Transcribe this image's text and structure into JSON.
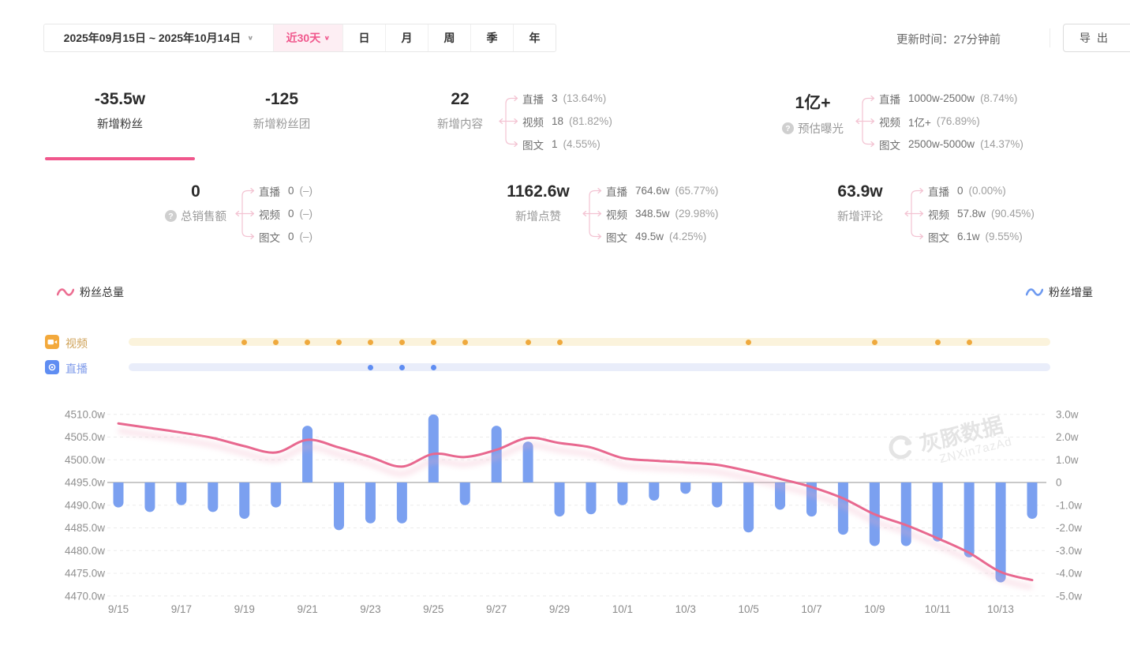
{
  "toolbar": {
    "date_range": "2025年09月15日 ~ 2025年10月14日",
    "quick_range": "近30天",
    "period_tabs": [
      "日",
      "月",
      "周",
      "季",
      "年"
    ],
    "update_time": "更新时间：27分钟前",
    "export_label": "导出"
  },
  "stats": {
    "row1": [
      {
        "value": "-35.5w",
        "label": "新增粉丝",
        "active": true
      },
      {
        "value": "-125",
        "label": "新增粉丝团"
      },
      {
        "value": "22",
        "label": "新增内容",
        "breakdown": [
          {
            "name": "直播",
            "value": "3",
            "pct": "(13.64%)"
          },
          {
            "name": "视频",
            "value": "18",
            "pct": "(81.82%)"
          },
          {
            "name": "图文",
            "value": "1",
            "pct": "(4.55%)"
          }
        ]
      },
      {
        "value": "1亿+",
        "label": "预估曝光",
        "help": true,
        "breakdown": [
          {
            "name": "直播",
            "value": "1000w-2500w",
            "pct": "(8.74%)"
          },
          {
            "name": "视频",
            "value": "1亿+",
            "pct": "(76.89%)"
          },
          {
            "name": "图文",
            "value": "2500w-5000w",
            "pct": "(14.37%)"
          }
        ]
      }
    ],
    "row2": [
      {
        "value": "0",
        "label": "总销售额",
        "help": true,
        "breakdown": [
          {
            "name": "直播",
            "value": "0",
            "pct": "(–)"
          },
          {
            "name": "视频",
            "value": "0",
            "pct": "(–)"
          },
          {
            "name": "图文",
            "value": "0",
            "pct": "(–)"
          }
        ]
      },
      {
        "value": "1162.6w",
        "label": "新增点赞",
        "breakdown": [
          {
            "name": "直播",
            "value": "764.6w",
            "pct": "(65.77%)"
          },
          {
            "name": "视频",
            "value": "348.5w",
            "pct": "(29.98%)"
          },
          {
            "name": "图文",
            "value": "49.5w",
            "pct": "(4.25%)"
          }
        ]
      },
      {
        "value": "63.9w",
        "label": "新增评论",
        "breakdown": [
          {
            "name": "直播",
            "value": "0",
            "pct": "(0.00%)"
          },
          {
            "name": "视频",
            "value": "57.8w",
            "pct": "(90.45%)"
          },
          {
            "name": "图文",
            "value": "6.1w",
            "pct": "(9.55%)"
          }
        ]
      }
    ]
  },
  "legend": {
    "left": "粉丝总量",
    "right": "粉丝增量"
  },
  "timeline": {
    "video_label": "视频",
    "live_label": "直播"
  },
  "watermark": {
    "brand": "灰豚数据",
    "code": "ZNXin7azAd"
  },
  "colors": {
    "accent_pink": "#f0578c",
    "line_pink": "#e8688f",
    "bar_blue": "#7ba0f0",
    "video_orange": "#efa93d",
    "live_blue": "#5f8df2"
  },
  "chart_data": {
    "type": "line+bar",
    "x": [
      "9/15",
      "9/16",
      "9/17",
      "9/18",
      "9/19",
      "9/20",
      "9/21",
      "9/22",
      "9/23",
      "9/24",
      "9/25",
      "9/26",
      "9/27",
      "9/28",
      "9/29",
      "9/30",
      "10/1",
      "10/2",
      "10/3",
      "10/4",
      "10/5",
      "10/6",
      "10/7",
      "10/8",
      "10/9",
      "10/10",
      "10/11",
      "10/12",
      "10/13",
      "10/14"
    ],
    "x_tick_labels": [
      "9/15",
      "9/17",
      "9/19",
      "9/21",
      "9/23",
      "9/25",
      "9/27",
      "9/29",
      "10/1",
      "10/3",
      "10/5",
      "10/7",
      "10/9",
      "10/11",
      "10/13"
    ],
    "series": [
      {
        "name": "粉丝总量",
        "type": "line",
        "axis": "left",
        "color": "#e8688f",
        "values": [
          4508.0,
          4507.0,
          4506.0,
          4504.8,
          4503.0,
          4501.6,
          4504.4,
          4502.7,
          4500.6,
          4498.5,
          4501.3,
          4500.6,
          4502.2,
          4504.8,
          4503.7,
          4502.7,
          4500.4,
          4499.8,
          4499.4,
          4498.9,
          4497.5,
          4495.8,
          4494.0,
          4491.5,
          4488.0,
          4485.6,
          4482.7,
          4479.5,
          4475.3,
          4473.5
        ]
      },
      {
        "name": "粉丝增量",
        "type": "bar",
        "axis": "right",
        "color": "#7ba0f0",
        "values": [
          -1.1,
          -1.3,
          -1.0,
          -1.3,
          -1.6,
          -1.1,
          2.5,
          -2.1,
          -1.8,
          -1.8,
          3.0,
          -1.0,
          2.5,
          1.8,
          -1.5,
          -1.4,
          -1.0,
          -0.8,
          -0.5,
          -1.1,
          -2.2,
          -1.2,
          -1.5,
          -2.3,
          -2.8,
          -2.8,
          -2.6,
          -3.3,
          -4.4,
          -1.6
        ]
      }
    ],
    "left_axis": {
      "unit": "w",
      "min": 4470,
      "max": 4510,
      "ticks": [
        "4510.0w",
        "4505.0w",
        "4500.0w",
        "4495.0w",
        "4490.0w",
        "4485.0w",
        "4480.0w",
        "4475.0w",
        "4470.0w"
      ]
    },
    "right_axis": {
      "unit": "w",
      "min": -5,
      "max": 3,
      "ticks": [
        "3.0w",
        "2.0w",
        "1.0w",
        "0",
        "-1.0w",
        "-2.0w",
        "-3.0w",
        "-4.0w",
        "-5.0w"
      ]
    },
    "video_days": [
      "9/19",
      "9/20",
      "9/21",
      "9/22",
      "9/23",
      "9/24",
      "9/25",
      "9/26",
      "9/28",
      "9/29",
      "10/5",
      "10/9",
      "10/11",
      "10/12"
    ],
    "live_days": [
      "9/23",
      "9/24",
      "9/25"
    ],
    "grid": true,
    "legend_position": "top-left and top-right"
  }
}
